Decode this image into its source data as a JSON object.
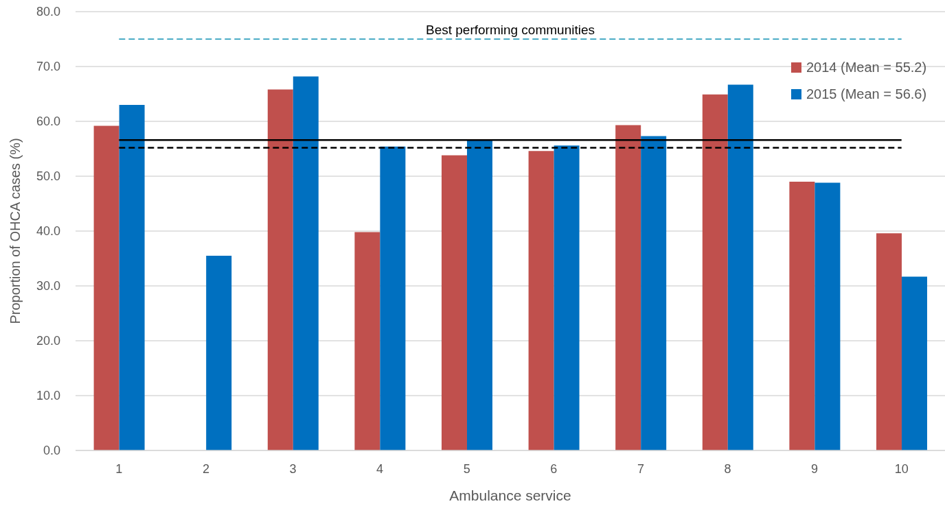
{
  "chart_data": {
    "type": "bar",
    "xlabel": "Ambulance service",
    "ylabel": "Proportion of OHCA cases (%)",
    "categories": [
      "1",
      "2",
      "3",
      "4",
      "5",
      "6",
      "7",
      "8",
      "9",
      "10"
    ],
    "series": [
      {
        "name": "2014 (Mean = 55.2)",
        "color": "#c0504d",
        "values": [
          59.2,
          null,
          65.8,
          39.8,
          53.8,
          54.6,
          59.3,
          64.9,
          49.0,
          39.6
        ]
      },
      {
        "name": "2015 (Mean = 56.6)",
        "color": "#0070c0",
        "values": [
          63.0,
          35.5,
          68.2,
          55.4,
          56.7,
          55.6,
          57.3,
          66.7,
          48.8,
          31.7
        ]
      }
    ],
    "ylim": [
      0,
      80
    ],
    "yticks": [
      {
        "value": 0,
        "label": "0.0"
      },
      {
        "value": 10,
        "label": "10.0"
      },
      {
        "value": 20,
        "label": "20.0"
      },
      {
        "value": 30,
        "label": "30.0"
      },
      {
        "value": 40,
        "label": "40.0"
      },
      {
        "value": 50,
        "label": "50.0"
      },
      {
        "value": 60,
        "label": "60.0"
      },
      {
        "value": 70,
        "label": "70.0"
      },
      {
        "value": 80,
        "label": "80.0"
      }
    ],
    "ref_lines": [
      {
        "axis": "y",
        "value": 75.0,
        "label": "Best performing communities",
        "color": "#4bacc6",
        "line_style": "dashed"
      },
      {
        "axis": "y",
        "value": 56.6,
        "color": "#000000",
        "line_style": "solid"
      },
      {
        "axis": "y",
        "value": 55.2,
        "color": "#000000",
        "line_style": "dashed"
      }
    ],
    "grid": "y",
    "legend": "top right"
  }
}
